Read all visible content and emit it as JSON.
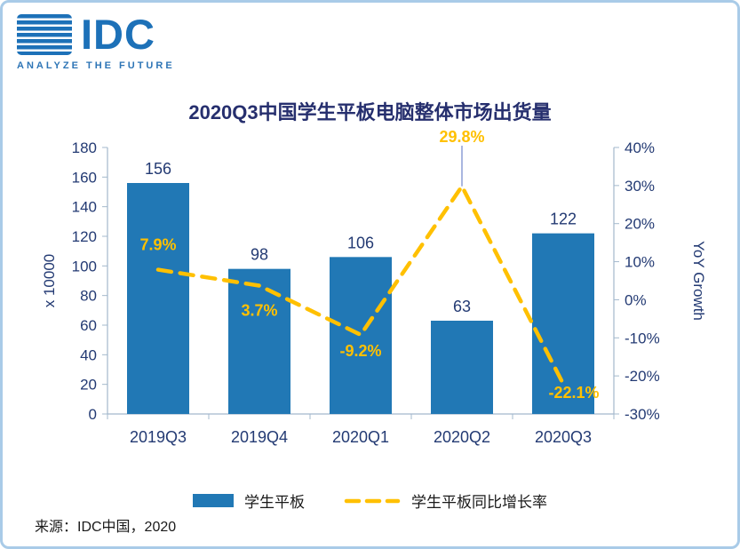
{
  "logo": {
    "text": "IDC",
    "tagline": "ANALYZE THE FUTURE"
  },
  "title": "2020Q3中国学生平板电脑整体市场出货量",
  "source": "来源：IDC中国，2020",
  "colors": {
    "bar": "#2178B5",
    "line": "#FFC000",
    "navy": "#233A73",
    "title": "#262F6E",
    "border": "#A9CBE8",
    "axis": "#A3B8CC",
    "leader": "#6F86CC",
    "logo": "#1D71B8",
    "tagline": "#2E75B6",
    "text": "#1A1A1A"
  },
  "chart_data": {
    "type": "bar",
    "title": "2020Q3中国学生平板电脑整体市场出货量",
    "categories": [
      "2019Q3",
      "2019Q4",
      "2020Q1",
      "2020Q2",
      "2020Q3"
    ],
    "series": [
      {
        "name": "学生平板",
        "type": "bar",
        "axis": "left",
        "color": "#2178B5",
        "values": [
          156,
          98,
          106,
          63,
          122
        ]
      },
      {
        "name": "学生平板同比增长率",
        "type": "line",
        "dashed": true,
        "axis": "right",
        "color": "#FFC000",
        "values": [
          7.9,
          3.7,
          -9.2,
          29.8,
          -22.1
        ],
        "labels": [
          "7.9%",
          "3.7%",
          "-9.2%",
          "29.8%",
          "-22.1%"
        ]
      }
    ],
    "left_axis": {
      "label": "x 10000",
      "min": 0,
      "max": 180,
      "step": 20
    },
    "right_axis": {
      "label": "YoY Growth",
      "min": -30,
      "max": 40,
      "step": 10,
      "suffix": "%"
    },
    "legend_position": "bottom",
    "grid": false
  }
}
